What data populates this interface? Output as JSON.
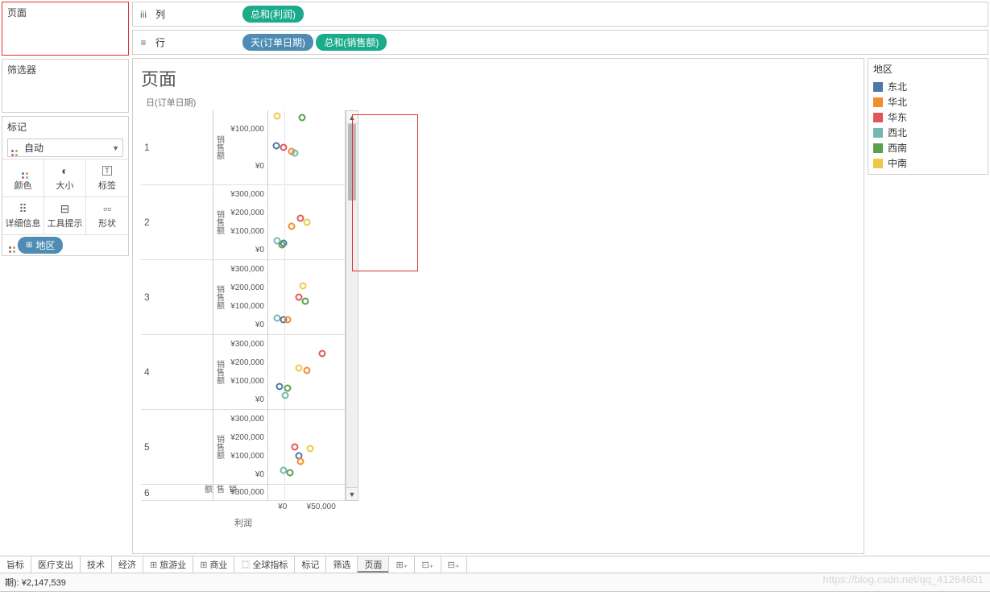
{
  "panels": {
    "pages": "页面",
    "filters": "筛选器",
    "marks": "标记"
  },
  "marks_select": "自动",
  "marks_cells": [
    {
      "icon": "dots",
      "label": "颜色"
    },
    {
      "icon": "size",
      "label": "大小"
    },
    {
      "icon": "text",
      "label": "标签"
    },
    {
      "icon": "detail",
      "label": "详细信息"
    },
    {
      "icon": "tooltip",
      "label": "工具提示"
    },
    {
      "icon": "shape",
      "label": "形状"
    }
  ],
  "marks_pill": {
    "icon": "⊞",
    "label": "地区"
  },
  "shelves": {
    "columns_label": "列",
    "rows_label": "行",
    "columns": [
      {
        "text": "总和(利润)",
        "cls": "green"
      }
    ],
    "rows": [
      {
        "text": "天(订单日期)",
        "cls": "blue"
      },
      {
        "text": "总和(销售额)",
        "cls": "green"
      }
    ]
  },
  "viz": {
    "title": "页面",
    "axis_header": "日(订单日期)",
    "y_axis_label": "销售额",
    "x_axis_label": "利润",
    "x_ticks": [
      "¥0",
      "¥50,000"
    ],
    "days": [
      "1",
      "2",
      "3",
      "4",
      "5",
      "6"
    ],
    "facets": [
      {
        "ticks": [
          "¥100,000",
          "¥0"
        ],
        "points": [
          {
            "x": 12,
            "y": 8,
            "c": "#edc948"
          },
          {
            "x": 44,
            "y": 10,
            "c": "#59a14f"
          },
          {
            "x": 10,
            "y": 48,
            "c": "#4e79a7"
          },
          {
            "x": 20,
            "y": 50,
            "c": "#e15759"
          },
          {
            "x": 30,
            "y": 55,
            "c": "#f28e2b"
          },
          {
            "x": 35,
            "y": 58,
            "c": "#76b7b2"
          }
        ]
      },
      {
        "ticks": [
          "¥300,000",
          "¥200,000",
          "¥100,000",
          "¥0"
        ],
        "points": [
          {
            "x": 42,
            "y": 45,
            "c": "#e15759"
          },
          {
            "x": 50,
            "y": 50,
            "c": "#edc948"
          },
          {
            "x": 30,
            "y": 55,
            "c": "#f28e2b"
          },
          {
            "x": 12,
            "y": 75,
            "c": "#76b7b2"
          },
          {
            "x": 20,
            "y": 78,
            "c": "#4e79a7"
          },
          {
            "x": 18,
            "y": 80,
            "c": "#59a14f"
          }
        ]
      },
      {
        "ticks": [
          "¥300,000",
          "¥200,000",
          "¥100,000",
          "¥0"
        ],
        "points": [
          {
            "x": 45,
            "y": 35,
            "c": "#edc948"
          },
          {
            "x": 40,
            "y": 50,
            "c": "#e15759"
          },
          {
            "x": 48,
            "y": 55,
            "c": "#59a14f"
          },
          {
            "x": 12,
            "y": 78,
            "c": "#76b7b2"
          },
          {
            "x": 20,
            "y": 80,
            "c": "#4e79a7"
          },
          {
            "x": 25,
            "y": 80,
            "c": "#f28e2b"
          }
        ]
      },
      {
        "ticks": [
          "¥300,000",
          "¥200,000",
          "¥100,000",
          "¥0"
        ],
        "points": [
          {
            "x": 70,
            "y": 25,
            "c": "#e15759"
          },
          {
            "x": 40,
            "y": 45,
            "c": "#edc948"
          },
          {
            "x": 50,
            "y": 48,
            "c": "#f28e2b"
          },
          {
            "x": 15,
            "y": 70,
            "c": "#4e79a7"
          },
          {
            "x": 25,
            "y": 72,
            "c": "#59a14f"
          },
          {
            "x": 22,
            "y": 82,
            "c": "#76b7b2"
          }
        ]
      },
      {
        "ticks": [
          "¥300,000",
          "¥200,000",
          "¥100,000",
          "¥0"
        ],
        "points": [
          {
            "x": 35,
            "y": 50,
            "c": "#e15759"
          },
          {
            "x": 55,
            "y": 52,
            "c": "#edc948"
          },
          {
            "x": 40,
            "y": 62,
            "c": "#4e79a7"
          },
          {
            "x": 42,
            "y": 70,
            "c": "#f28e2b"
          },
          {
            "x": 20,
            "y": 82,
            "c": "#76b7b2"
          },
          {
            "x": 28,
            "y": 85,
            "c": "#59a14f"
          }
        ]
      },
      {
        "ticks": [
          "¥300,000"
        ],
        "points": []
      }
    ]
  },
  "legend": {
    "title": "地区",
    "items": [
      {
        "label": "东北",
        "color": "#4e79a7"
      },
      {
        "label": "华北",
        "color": "#f28e2b"
      },
      {
        "label": "华东",
        "color": "#e15759"
      },
      {
        "label": "西北",
        "color": "#76b7b2"
      },
      {
        "label": "西南",
        "color": "#59a14f"
      },
      {
        "label": "中南",
        "color": "#edc948"
      }
    ]
  },
  "tabs": [
    {
      "label": "旨标"
    },
    {
      "label": "医疗支出"
    },
    {
      "label": "技术"
    },
    {
      "label": "经济"
    },
    {
      "label": "旅游业",
      "icon": "⊞"
    },
    {
      "label": "商业",
      "icon": "⊞"
    },
    {
      "label": "全球指标",
      "icon": "⿴"
    },
    {
      "label": "标记"
    },
    {
      "label": "筛选"
    },
    {
      "label": "页面",
      "active": true
    }
  ],
  "tab_buttons": [
    "new-worksheet",
    "new-dashboard",
    "new-story"
  ],
  "status": "期): ¥2,147,539",
  "watermark": "https://blog.csdn.net/qq_41264601"
}
